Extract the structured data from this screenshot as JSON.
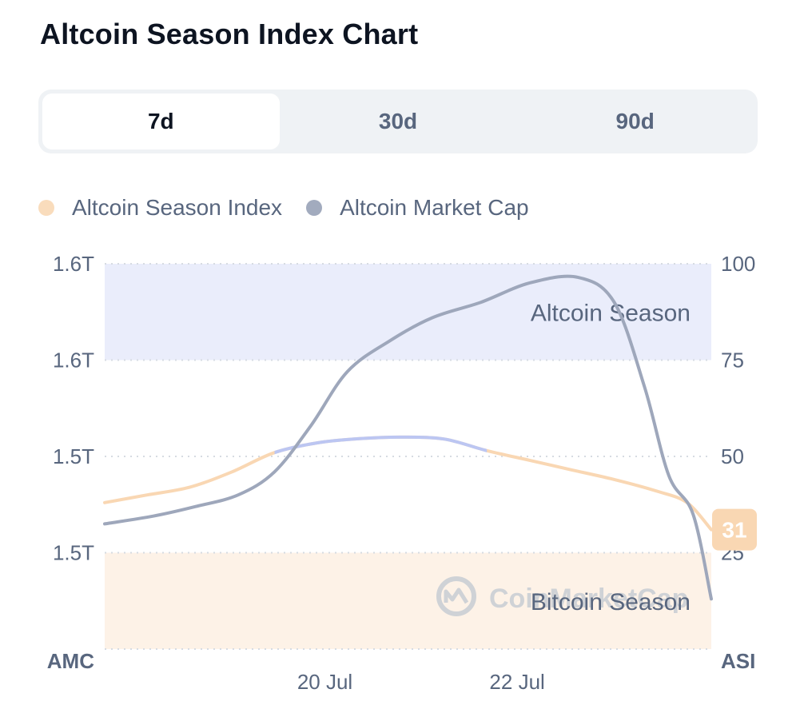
{
  "title": "Altcoin Season Index Chart",
  "tabs": [
    {
      "label": "7d",
      "active": true
    },
    {
      "label": "30d",
      "active": false
    },
    {
      "label": "90d",
      "active": false
    }
  ],
  "legend": [
    {
      "label": "Altcoin Season Index",
      "color": "#f9dcbc"
    },
    {
      "label": "Altcoin Market Cap",
      "color": "#a2abbe"
    }
  ],
  "watermark": "CoinMarketCap",
  "chart_data": {
    "type": "line",
    "left_axis": {
      "name": "AMC",
      "tick_labels": [
        "1.6T",
        "1.6T",
        "1.5T",
        "1.5T"
      ]
    },
    "right_axis": {
      "name": "ASI",
      "ticks": [
        100,
        75,
        50,
        25
      ],
      "range": [
        0,
        100
      ]
    },
    "x_tick_labels": [
      "20 Jul",
      "22 Jul"
    ],
    "zones": [
      {
        "label": "Altcoin Season",
        "from": 75,
        "to": 100,
        "color": "#eaedfb"
      },
      {
        "label": "Bitcoin Season",
        "from": 0,
        "to": 25,
        "color": "#fdf2e7"
      }
    ],
    "grid": true,
    "legend_position": "top-left",
    "current_index": 31,
    "series": [
      {
        "name": "Altcoin Season Index",
        "axis": "right",
        "color": "#f9d7b3",
        "highlight_color": "#bcc6f2",
        "highlight_range_t": [
          0.28,
          0.63
        ],
        "t": [
          0,
          0.07,
          0.14,
          0.21,
          0.28,
          0.35,
          0.42,
          0.49,
          0.56,
          0.63,
          0.7,
          0.77,
          0.84,
          0.91,
          0.96,
          1.0
        ],
        "values": [
          38,
          40,
          42,
          46,
          51,
          53.5,
          54.6,
          55,
          54.5,
          51.5,
          49,
          46.5,
          44,
          41,
          38,
          31
        ]
      },
      {
        "name": "Altcoin Market Cap",
        "axis": "left",
        "color": "#9ea7bb",
        "t": [
          0,
          0.08,
          0.15,
          0.22,
          0.28,
          0.34,
          0.4,
          0.47,
          0.54,
          0.62,
          0.7,
          0.78,
          0.84,
          0.89,
          0.93,
          0.97,
          1.0
        ],
        "values": [
          32.5,
          34.5,
          37,
          40,
          46,
          58,
          72,
          80,
          86,
          90,
          95,
          96.5,
          90,
          68,
          45,
          35,
          13
        ]
      }
    ]
  }
}
